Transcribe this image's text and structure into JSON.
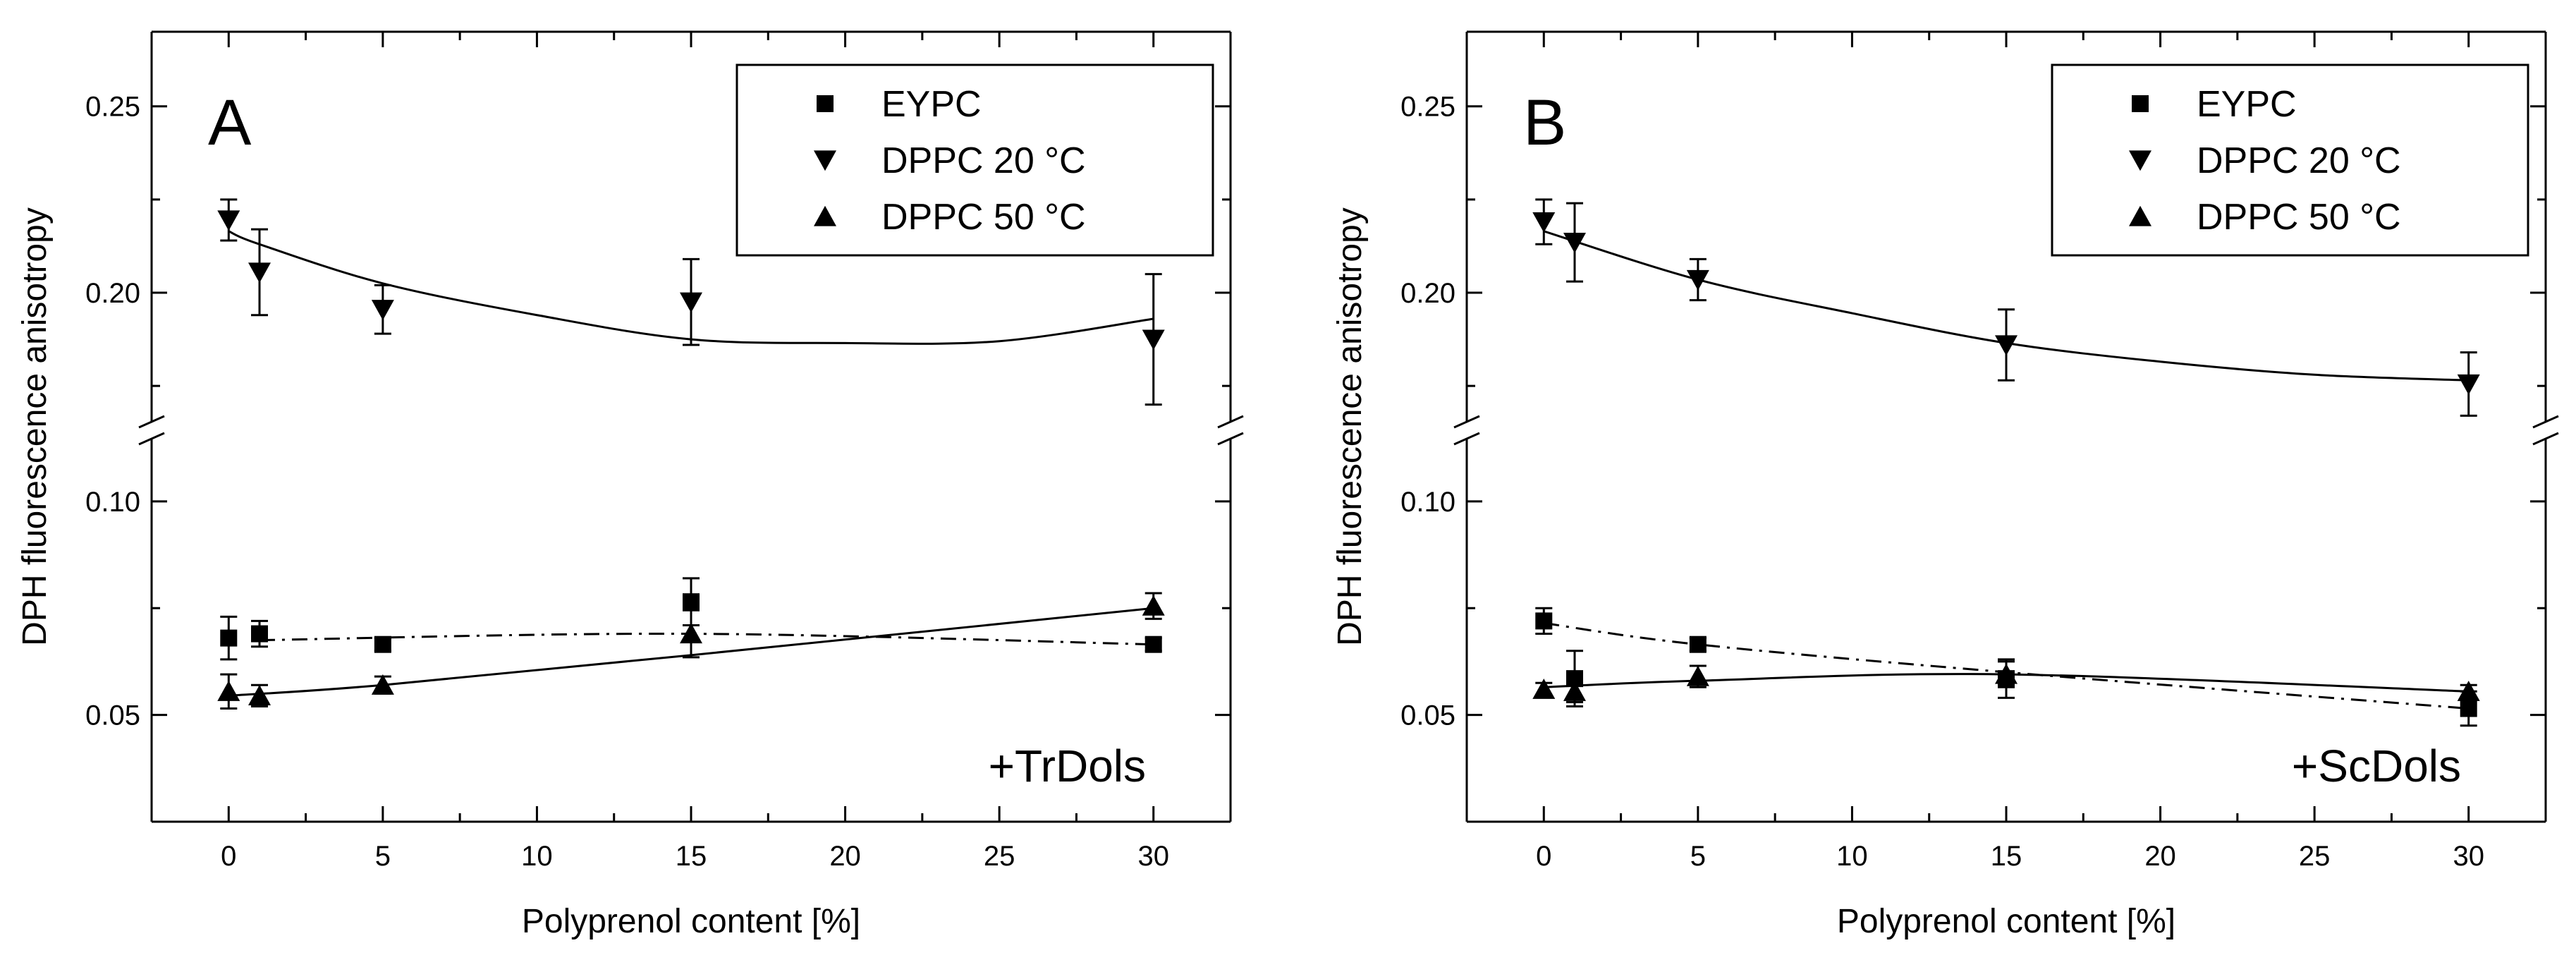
{
  "chart_data": [
    {
      "type": "scatter",
      "panel_label": "A",
      "annotation": "+TrDols",
      "xlabel": "Polyprenol content [%]",
      "ylabel": "DPH fluorescence anisotropy",
      "xlim": [
        -2.5,
        32.5
      ],
      "x_ticks": [
        0,
        5,
        10,
        15,
        20,
        25,
        30
      ],
      "x_tick_labels": [
        "0",
        "5",
        "10",
        "15",
        "20",
        "25",
        "30"
      ],
      "y_break": true,
      "ylim_lower": [
        0.025,
        0.115
      ],
      "ylim_upper": [
        0.165,
        0.27
      ],
      "y_ticks_lower": [
        0.05,
        0.1
      ],
      "y_tick_labels_lower": [
        "0.05",
        "0.10"
      ],
      "y_ticks_upper": [
        0.2,
        0.25
      ],
      "y_tick_labels_upper": [
        "0.20",
        "0.25"
      ],
      "legend": {
        "position": "top-right",
        "entries": [
          "EYPC",
          "DPPC 20 °C",
          "DPPC 50 °C"
        ]
      },
      "series": [
        {
          "name": "EYPC",
          "marker": "square",
          "fit_style": "dashdot",
          "x": [
            0,
            1,
            5,
            15,
            30
          ],
          "y": [
            0.068,
            0.069,
            0.0665,
            0.0765,
            0.0665
          ],
          "err": [
            0.005,
            0.003,
            0.0015,
            0.0055,
            0.0015
          ],
          "fit_x": [
            1,
            15,
            30
          ],
          "fit_y": [
            0.0675,
            0.069,
            0.0665
          ]
        },
        {
          "name": "DPPC 20 °C",
          "marker": "triangle-down",
          "fit_style": "solid",
          "x": [
            0,
            1,
            5,
            15,
            30
          ],
          "y": [
            0.2195,
            0.2055,
            0.1955,
            0.1975,
            0.1875
          ],
          "err": [
            0.0055,
            0.0115,
            0.0065,
            0.0115,
            0.0175
          ],
          "fit_x": [
            0,
            1,
            5,
            10,
            15,
            20,
            25,
            30
          ],
          "fit_y": [
            0.2165,
            0.213,
            0.2025,
            0.194,
            0.1875,
            0.1865,
            0.187,
            0.193
          ]
        },
        {
          "name": "DPPC 50 °C",
          "marker": "triangle-up",
          "fit_style": "solid",
          "x": [
            0,
            1,
            5,
            15,
            30
          ],
          "y": [
            0.0555,
            0.0545,
            0.057,
            0.069,
            0.0755
          ],
          "err": [
            0.004,
            0.0025,
            0.002,
            0.0055,
            0.003
          ],
          "fit_x": [
            0,
            5,
            15,
            30
          ],
          "fit_y": [
            0.0545,
            0.057,
            0.064,
            0.075
          ]
        }
      ]
    },
    {
      "type": "scatter",
      "panel_label": "B",
      "annotation": "+ScDols",
      "xlabel": "Polyprenol content [%]",
      "ylabel": "DPH fluorescence anisotropy",
      "xlim": [
        -2.5,
        32.5
      ],
      "x_ticks": [
        0,
        5,
        10,
        15,
        20,
        25,
        30
      ],
      "x_tick_labels": [
        "0",
        "5",
        "10",
        "15",
        "20",
        "25",
        "30"
      ],
      "y_break": true,
      "ylim_lower": [
        0.025,
        0.115
      ],
      "ylim_upper": [
        0.165,
        0.27
      ],
      "y_ticks_lower": [
        0.05,
        0.1
      ],
      "y_tick_labels_lower": [
        "0.05",
        "0.10"
      ],
      "y_ticks_upper": [
        0.2,
        0.25
      ],
      "y_tick_labels_upper": [
        "0.20",
        "0.25"
      ],
      "legend": {
        "position": "top-right",
        "entries": [
          "EYPC",
          "DPPC 20 °C",
          "DPPC 50 °C"
        ]
      },
      "series": [
        {
          "name": "EYPC",
          "marker": "square",
          "fit_style": "dashdot",
          "x": [
            0,
            1,
            5,
            15,
            30
          ],
          "y": [
            0.072,
            0.0585,
            0.0665,
            0.0585,
            0.0515
          ],
          "err": [
            0.003,
            0.0065,
            0.0015,
            0.0045,
            0.004
          ],
          "fit_x": [
            0,
            5,
            15,
            30
          ],
          "fit_y": [
            0.0715,
            0.0665,
            0.06,
            0.0515
          ]
        },
        {
          "name": "DPPC 20 °C",
          "marker": "triangle-down",
          "fit_style": "solid",
          "x": [
            0,
            1,
            5,
            15,
            30
          ],
          "y": [
            0.219,
            0.2135,
            0.2035,
            0.186,
            0.1755
          ],
          "err": [
            0.006,
            0.0105,
            0.0055,
            0.0095,
            0.0085
          ],
          "fit_x": [
            0,
            5,
            10,
            15,
            20,
            25,
            30
          ],
          "fit_y": [
            0.2165,
            0.2035,
            0.1945,
            0.1865,
            0.1815,
            0.178,
            0.1765
          ]
        },
        {
          "name": "DPPC 50 °C",
          "marker": "triangle-up",
          "fit_style": "solid",
          "x": [
            0,
            1,
            5,
            15,
            30
          ],
          "y": [
            0.056,
            0.0555,
            0.059,
            0.0595,
            0.0555
          ],
          "err": [
            0.0015,
            0.0025,
            0.0025,
            0.003,
            0.0015
          ],
          "fit_x": [
            0,
            5,
            15,
            30
          ],
          "fit_y": [
            0.0565,
            0.058,
            0.0595,
            0.0555
          ]
        }
      ]
    }
  ]
}
